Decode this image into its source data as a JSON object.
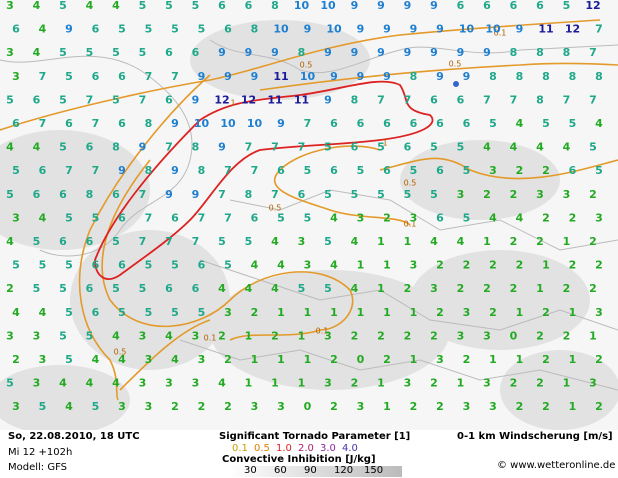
{
  "map": {
    "wind_shear_rows": [
      [
        3,
        4,
        5,
        4,
        4,
        5,
        5,
        5,
        6,
        6,
        8,
        10,
        10,
        9,
        9,
        9,
        9,
        6,
        6,
        6,
        6,
        5,
        12
      ],
      [
        6,
        4,
        9,
        6,
        5,
        5,
        5,
        5,
        6,
        8,
        10,
        9,
        10,
        9,
        9,
        9,
        9,
        10,
        10,
        9,
        11,
        12,
        7
      ],
      [
        3,
        4,
        5,
        5,
        5,
        5,
        6,
        6,
        9,
        9,
        9,
        8,
        9,
        9,
        9,
        9,
        9,
        9,
        9,
        8,
        8,
        8,
        7
      ],
      [
        3,
        7,
        5,
        6,
        6,
        7,
        7,
        9,
        9,
        9,
        11,
        10,
        9,
        9,
        9,
        8,
        9,
        9,
        8,
        8,
        8,
        8,
        8
      ],
      [
        5,
        6,
        5,
        7,
        5,
        7,
        6,
        9,
        12,
        12,
        11,
        11,
        9,
        8,
        7,
        7,
        6,
        6,
        7,
        7,
        8,
        7,
        7
      ],
      [
        6,
        7,
        6,
        7,
        6,
        8,
        9,
        10,
        10,
        10,
        9,
        7,
        6,
        6,
        6,
        6,
        6,
        6,
        5,
        4,
        5,
        5,
        4
      ],
      [
        4,
        4,
        5,
        6,
        8,
        9,
        7,
        8,
        9,
        7,
        7,
        7,
        5,
        6,
        5,
        6,
        5,
        5,
        4,
        4,
        4,
        4,
        5
      ],
      [
        5,
        6,
        7,
        7,
        9,
        8,
        9,
        8,
        7,
        7,
        6,
        5,
        6,
        5,
        6,
        5,
        6,
        5,
        3,
        2,
        2,
        6,
        5
      ],
      [
        5,
        6,
        6,
        8,
        6,
        7,
        9,
        9,
        7,
        8,
        7,
        6,
        5,
        5,
        5,
        5,
        5,
        3,
        2,
        2,
        3,
        3,
        2
      ],
      [
        3,
        4,
        5,
        5,
        6,
        7,
        6,
        7,
        7,
        6,
        5,
        5,
        4,
        3,
        2,
        3,
        6,
        5,
        4,
        4,
        2,
        2,
        3
      ],
      [
        4,
        5,
        6,
        6,
        5,
        7,
        7,
        7,
        5,
        5,
        4,
        3,
        5,
        4,
        1,
        1,
        4,
        4,
        1,
        2,
        2,
        1,
        2
      ],
      [
        5,
        5,
        5,
        6,
        6,
        5,
        5,
        6,
        5,
        4,
        4,
        3,
        4,
        1,
        1,
        3,
        2,
        2,
        2,
        2,
        1,
        2,
        2
      ],
      [
        2,
        5,
        5,
        6,
        5,
        5,
        6,
        6,
        4,
        4,
        4,
        5,
        5,
        4,
        1,
        2,
        3,
        2,
        2,
        2,
        1,
        2,
        2
      ],
      [
        4,
        4,
        5,
        6,
        5,
        5,
        5,
        5,
        3,
        2,
        1,
        1,
        1,
        1,
        1,
        1,
        2,
        3,
        2,
        1,
        2,
        1,
        3
      ],
      [
        3,
        3,
        5,
        5,
        4,
        3,
        4,
        3,
        2,
        1,
        2,
        1,
        3,
        2,
        2,
        2,
        2,
        3,
        3,
        0,
        2,
        2,
        1
      ],
      [
        2,
        3,
        5,
        4,
        4,
        3,
        4,
        3,
        2,
        1,
        1,
        1,
        2,
        0,
        2,
        1,
        3,
        2,
        1,
        1,
        2,
        1,
        2
      ],
      [
        5,
        3,
        4,
        4,
        4,
        3,
        3,
        3,
        4,
        1,
        1,
        1,
        3,
        2,
        1,
        3,
        2,
        1,
        3,
        2,
        2,
        1,
        3
      ],
      [
        3,
        5,
        4,
        5,
        3,
        3,
        2,
        2,
        2,
        3,
        3,
        0,
        2,
        3,
        1,
        2,
        2,
        3,
        3,
        2,
        2,
        1,
        2
      ]
    ],
    "contour_labels": [
      "0.1",
      "0.5",
      "0.5",
      "1",
      "1",
      "0.5",
      "0.5",
      "0.1",
      "0.1",
      "0.5",
      "0.1"
    ]
  },
  "footer": {
    "datetime": "So, 22.08.2010, 18 UTC",
    "run": "Mi 12 +102h",
    "model": "Modell: GFS",
    "stp_title": "Significant Tornado Parameter [1]",
    "stp_levels": [
      "0.1",
      "0.5",
      "1.0",
      "2.0",
      "3.0",
      "4.0"
    ],
    "cin_title": "Convective Inhibition [J/kg]",
    "cin_levels": [
      "30",
      "60",
      "90",
      "120",
      "150"
    ],
    "shear_title": "0-1 km Windscherung [m/s]",
    "copyright": "© www.wetteronline.de"
  }
}
